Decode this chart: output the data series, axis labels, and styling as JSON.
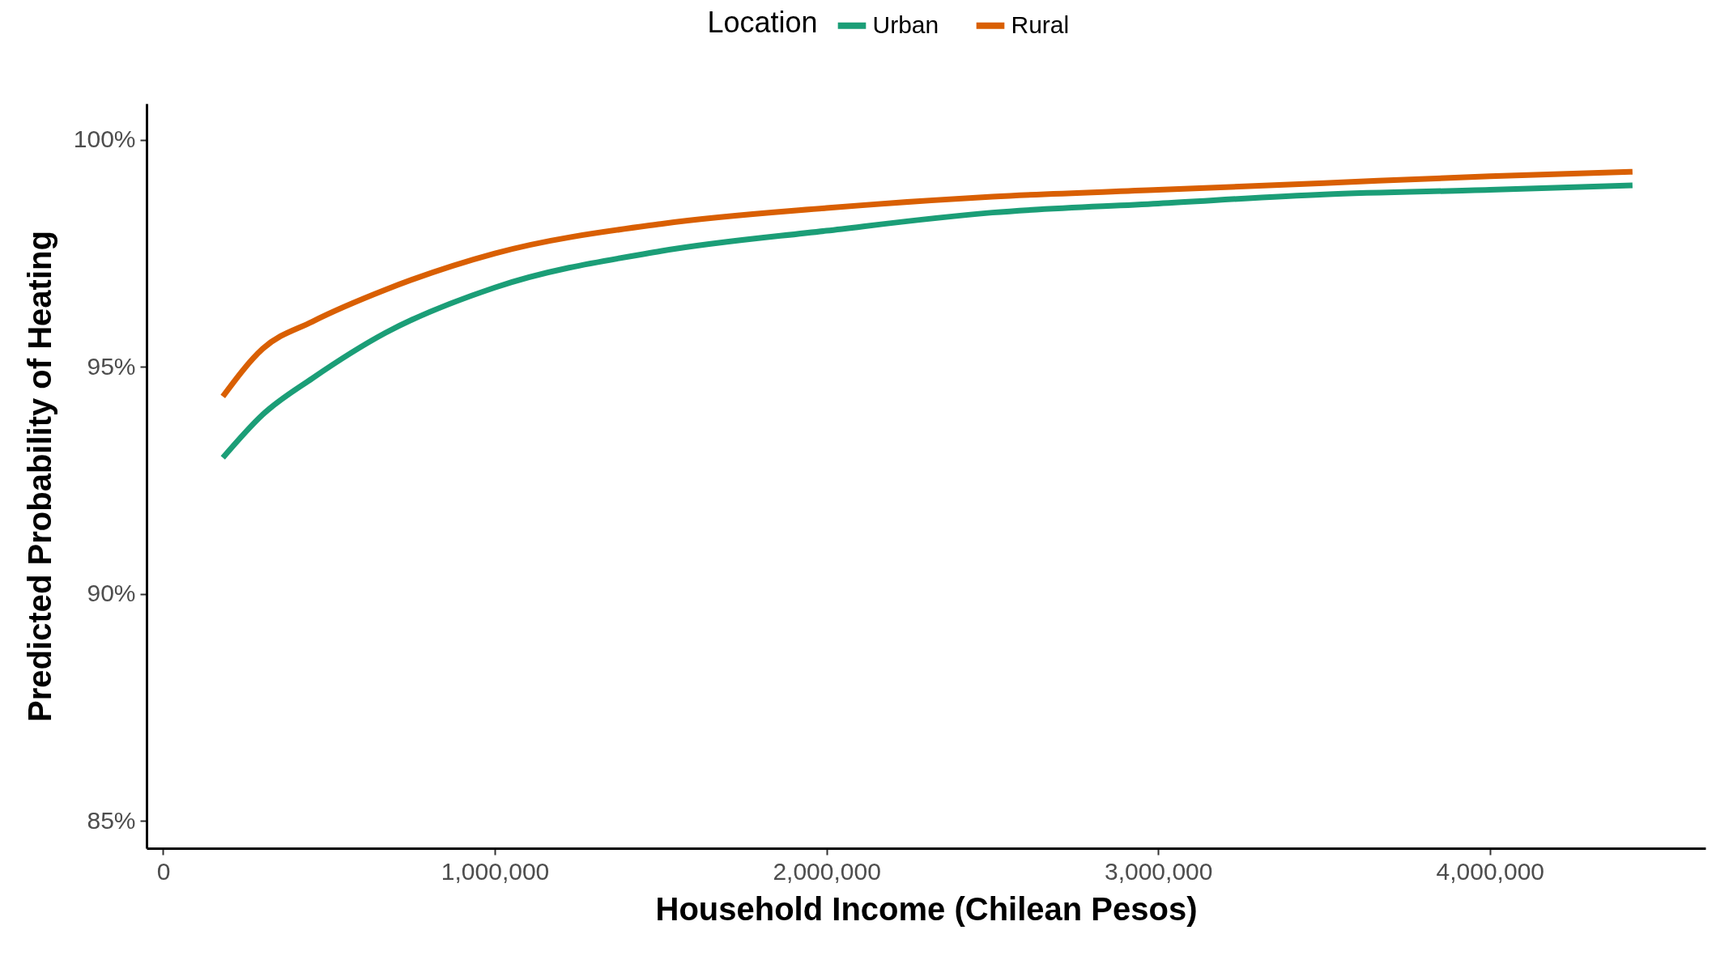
{
  "chart_data": {
    "type": "line",
    "xlabel": "Household Income (Chilean Pesos)",
    "ylabel": "Predicted Probability of Heating",
    "legend_title": "Location",
    "legend": "top",
    "grid": false,
    "line_style": "solid",
    "marker": "none",
    "x": [
      180000,
      300000,
      450000,
      670000,
      1000000,
      1500000,
      2000000,
      2500000,
      3000000,
      3500000,
      4000000,
      4430000
    ],
    "series": [
      {
        "name": "Urban",
        "color": "#1b9e77",
        "values": [
          93.0,
          93.95,
          94.75,
          95.75,
          96.75,
          97.55,
          98.0,
          98.4,
          98.6,
          98.8,
          98.9,
          99.0
        ]
      },
      {
        "name": "Rural",
        "color": "#d95f02",
        "values": [
          94.35,
          95.4,
          96.0,
          96.7,
          97.5,
          98.15,
          98.5,
          98.75,
          98.9,
          99.05,
          99.2,
          99.3
        ]
      }
    ],
    "xlim": [
      -50000,
      4650000
    ],
    "xticks": [
      {
        "value": 0,
        "label": "0"
      },
      {
        "value": 1000000,
        "label": "1,000,000"
      },
      {
        "value": 2000000,
        "label": "2,000,000"
      },
      {
        "value": 3000000,
        "label": "3,000,000"
      },
      {
        "value": 4000000,
        "label": "4,000,000"
      }
    ],
    "ylim": [
      84.4,
      100.8
    ],
    "yticks": [
      {
        "value": 85,
        "label": "85%"
      },
      {
        "value": 90,
        "label": "90%"
      },
      {
        "value": 95,
        "label": "95%"
      },
      {
        "value": 100,
        "label": "100%"
      }
    ]
  }
}
